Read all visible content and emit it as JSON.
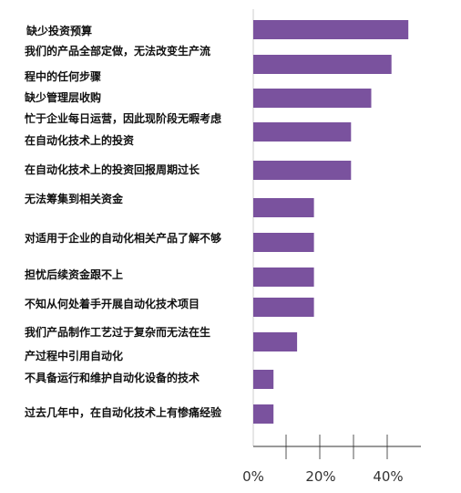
{
  "chart_data": {
    "type": "bar",
    "orientation": "horizontal",
    "title": "",
    "xlabel": "",
    "ylabel": "",
    "xlim": [
      0,
      45
    ],
    "x_ticks": [
      0,
      20,
      40
    ],
    "x_tick_labels": [
      "0%",
      "20%",
      "40%"
    ],
    "grid": false,
    "bar_color": "#7a529e",
    "categories": [
      [
        "缺少投资预算"
      ],
      [
        "我们的产品全部定做，无法改变生产流",
        "程中的任何步骤"
      ],
      [
        "缺少管理层收购"
      ],
      [
        "忙于企业每日运营，因此现阶段无暇考虑",
        "在自动化技术上的投资"
      ],
      [
        "在自动化技术上的投资回报周期过长"
      ],
      [
        "无法筹集到相关资金"
      ],
      [
        "对适用于企业的自动化相关产品了解不够"
      ],
      [
        "担忧后续资金跟不上"
      ],
      [
        "不知从何处着手开展自动化技术项目"
      ],
      [
        "我们产品制作工艺过于复杂而无法在生",
        "产过程中引用自动化"
      ],
      [
        "不具备运行和维护自动化设备的技术"
      ],
      [
        "过去几年中，在自动化技术上有惨痛经验"
      ]
    ],
    "values": [
      46,
      41,
      35,
      29,
      29,
      18,
      18,
      18,
      18,
      13,
      6,
      6
    ]
  }
}
